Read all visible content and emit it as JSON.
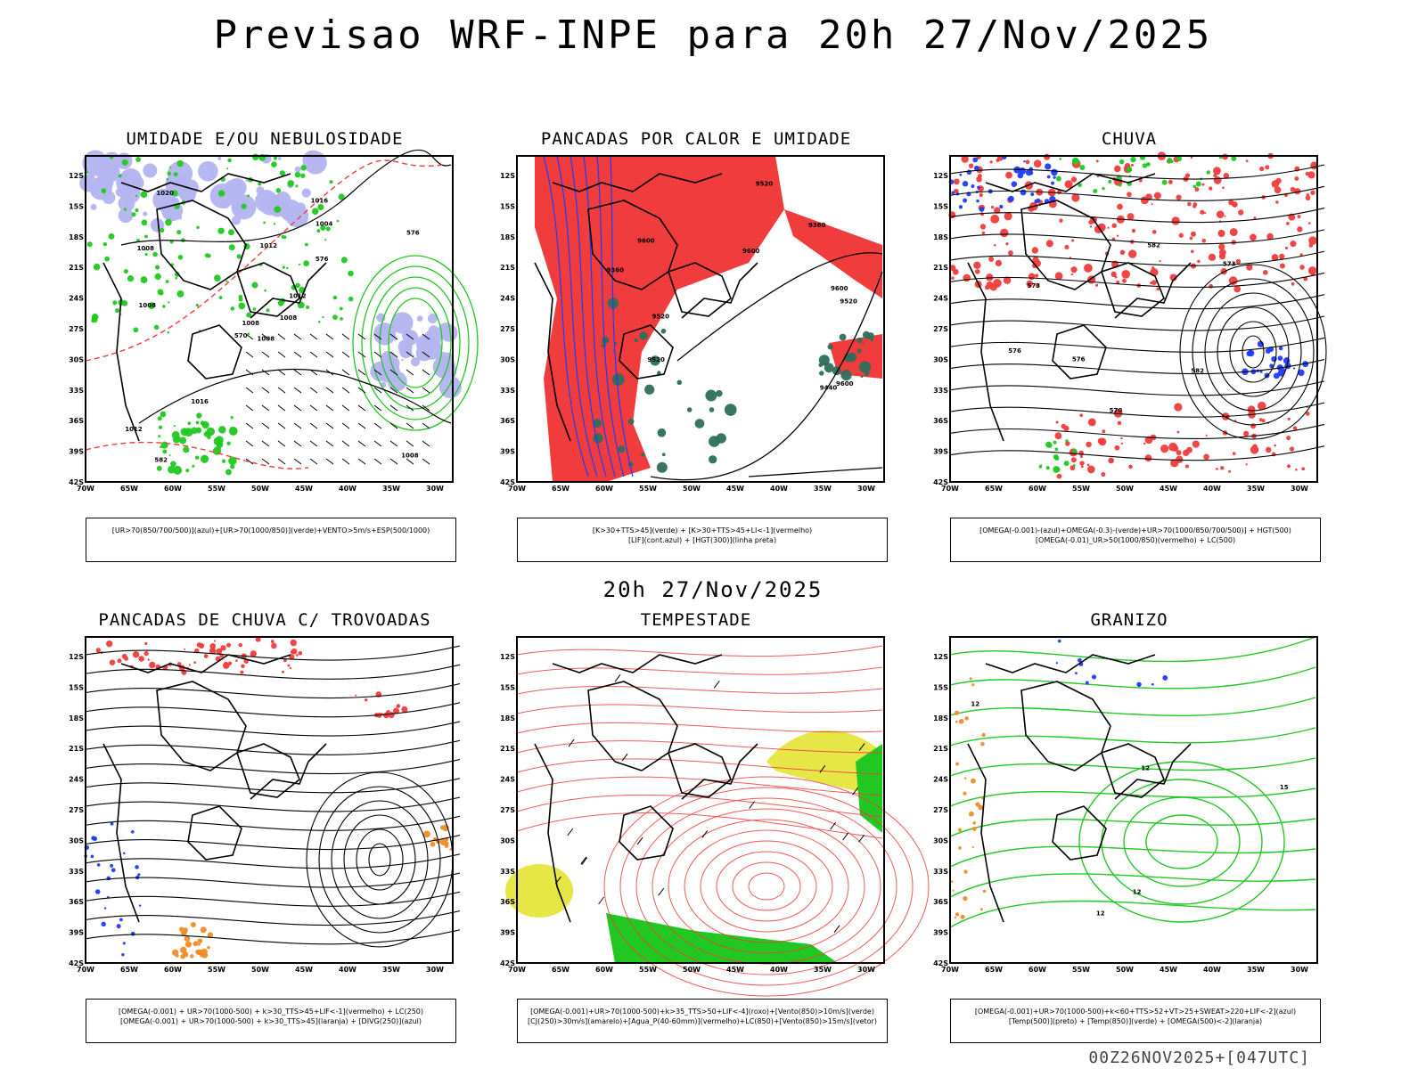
{
  "main_title": "Previsao WRF-INPE  para 20h 27/Nov/2025",
  "mid_date": "20h 27/Nov/2025",
  "footer": "00Z26NOV2025+[047UTC]",
  "axes": {
    "lat_labels": [
      "12S",
      "15S",
      "18S",
      "21S",
      "24S",
      "27S",
      "30S",
      "33S",
      "36S",
      "39S",
      "42S"
    ],
    "lon_labels": [
      "70W",
      "65W",
      "60W",
      "55W",
      "50W",
      "45W",
      "40W",
      "35W",
      "30W"
    ]
  },
  "colors": {
    "green": "#21c821",
    "blue": "#1e3cff",
    "red": "#f03c3c",
    "lavender": "#b4b4f0",
    "darkgreen": "#2d6e5a",
    "yellow": "#e6e646",
    "orange": "#f08c28",
    "black": "#000000"
  },
  "panels": [
    {
      "id": "umidade",
      "title": "UMIDADE E/OU NEBULOSIDADE",
      "legend": [
        "[UR>70(850/700/500)](azul)+[UR>70(1000/850)](verde)+VENTO>5m/s+ESP(500/1000)"
      ],
      "contour_labels": [
        "1008",
        "1008",
        "1008",
        "1012",
        "1012",
        "1016",
        "1016",
        "1012",
        "1004",
        "1008",
        "1020",
        "1008",
        "1008",
        "576",
        "570",
        "576",
        "582"
      ]
    },
    {
      "id": "pancadas_calor",
      "title": "PANCADAS POR CALOR E UMIDADE",
      "legend": [
        "[K>30+TTS>45](verde) + [K>30+TTS>45+LI<-1](vermelho)",
        "[LIF](cont.azul) + [HGT(300)](linha preta)"
      ],
      "contour_labels": [
        "9600",
        "9600",
        "9600",
        "9520",
        "9520",
        "9600",
        "9520",
        "9520",
        "9440",
        "9360",
        "9360"
      ]
    },
    {
      "id": "chuva",
      "title": "CHUVA",
      "legend": [
        "[OMEGA(-0.001)-(azul)+OMEGA(-0.3)-(verde)+UR>70(1000/850/700/500)] + HGT(500)",
        "[OMEGA(-0.01)_UR>50(1000/850)(vermelho) + LC(500)"
      ],
      "contour_labels": [
        "582",
        "582",
        "576",
        "576",
        "573",
        "570",
        "573"
      ]
    },
    {
      "id": "trovoadas",
      "title": "PANCADAS DE CHUVA C/ TROVOADAS",
      "legend": [
        "[OMEGA(-0.001) + UR>70(1000-500) + k>30_TTS>45+LIF<-1](vermelho) + LC(250)",
        "[OMEGA(-0.001) + UR>70(1000-500) + k>30_TTS>45](laranja) + [DIVG(250)](azul)"
      ],
      "contour_labels": []
    },
    {
      "id": "tempestade",
      "title": "TEMPESTADE",
      "legend": [
        "[OMEGA(-0.001)+UR>70(1000-500)+k>35_TTS>50+LIF<-4](roxo)+[Vento(850)>10m/s](verde)",
        "[CJ(250)>30m/s](amarelo)+[Agua_P(40-60mm)](vermelho)+LC(850)+[Vento(850)>15m/s](vetor)"
      ],
      "contour_labels": []
    },
    {
      "id": "granizo",
      "title": "GRANIZO",
      "legend": [
        "[OMEGA(-0.001)+UR>70(1000-500)+k<60+TTS>52+VT>25+SWEAT>220+LIF<-2](azul)",
        "[Temp(500)](preto) + [Temp(850)](verde) + [OMEGA(500)<-2](laranja)"
      ],
      "contour_labels": [
        "12",
        "12",
        "12",
        "12",
        "15"
      ]
    }
  ]
}
